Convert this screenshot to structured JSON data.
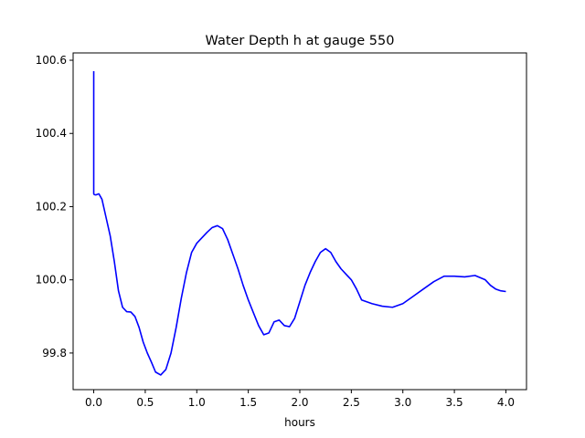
{
  "chart_data": {
    "type": "line",
    "title": "Water Depth h at gauge 550",
    "xlabel": "hours",
    "ylabel": "",
    "xlim": [
      -0.2,
      4.2
    ],
    "ylim": [
      99.7,
      100.62
    ],
    "x_ticks": [
      {
        "value": 0.0,
        "label": "0.0"
      },
      {
        "value": 0.5,
        "label": "0.5"
      },
      {
        "value": 1.0,
        "label": "1.0"
      },
      {
        "value": 1.5,
        "label": "1.5"
      },
      {
        "value": 2.0,
        "label": "2.0"
      },
      {
        "value": 2.5,
        "label": "2.5"
      },
      {
        "value": 3.0,
        "label": "3.0"
      },
      {
        "value": 3.5,
        "label": "3.5"
      },
      {
        "value": 4.0,
        "label": "4.0"
      }
    ],
    "y_ticks": [
      {
        "value": 99.8,
        "label": "99.8"
      },
      {
        "value": 100.0,
        "label": "100.0"
      },
      {
        "value": 100.2,
        "label": "100.2"
      },
      {
        "value": 100.4,
        "label": "100.4"
      },
      {
        "value": 100.6,
        "label": "100.6"
      }
    ],
    "grid": false,
    "series": [
      {
        "color": "#0000ff",
        "x": [
          0.0,
          0.0,
          0.005,
          0.02,
          0.05,
          0.08,
          0.12,
          0.16,
          0.2,
          0.24,
          0.28,
          0.32,
          0.36,
          0.4,
          0.44,
          0.48,
          0.52,
          0.56,
          0.6,
          0.65,
          0.7,
          0.75,
          0.8,
          0.85,
          0.9,
          0.95,
          1.0,
          1.05,
          1.1,
          1.15,
          1.2,
          1.25,
          1.3,
          1.35,
          1.4,
          1.45,
          1.5,
          1.55,
          1.6,
          1.65,
          1.7,
          1.75,
          1.8,
          1.85,
          1.9,
          1.95,
          2.0,
          2.05,
          2.1,
          2.15,
          2.2,
          2.25,
          2.3,
          2.35,
          2.4,
          2.45,
          2.5,
          2.55,
          2.6,
          2.7,
          2.8,
          2.9,
          3.0,
          3.1,
          3.2,
          3.3,
          3.4,
          3.5,
          3.6,
          3.7,
          3.8,
          3.85,
          3.9,
          3.95,
          4.0
        ],
        "y": [
          100.57,
          100.235,
          100.233,
          100.232,
          100.235,
          100.22,
          100.17,
          100.12,
          100.05,
          99.97,
          99.925,
          99.913,
          99.912,
          99.9,
          99.87,
          99.83,
          99.8,
          99.775,
          99.748,
          99.74,
          99.755,
          99.8,
          99.87,
          99.95,
          100.02,
          100.075,
          100.1,
          100.115,
          100.13,
          100.143,
          100.148,
          100.14,
          100.11,
          100.07,
          100.03,
          99.985,
          99.945,
          99.91,
          99.875,
          99.85,
          99.855,
          99.885,
          99.89,
          99.875,
          99.872,
          99.895,
          99.94,
          99.985,
          100.02,
          100.05,
          100.075,
          100.085,
          100.075,
          100.05,
          100.03,
          100.015,
          100.0,
          99.975,
          99.945,
          99.935,
          99.928,
          99.925,
          99.935,
          99.955,
          99.975,
          99.995,
          100.01,
          100.01,
          100.008,
          100.012,
          100.0,
          99.985,
          99.975,
          99.97,
          99.968
        ]
      }
    ]
  }
}
